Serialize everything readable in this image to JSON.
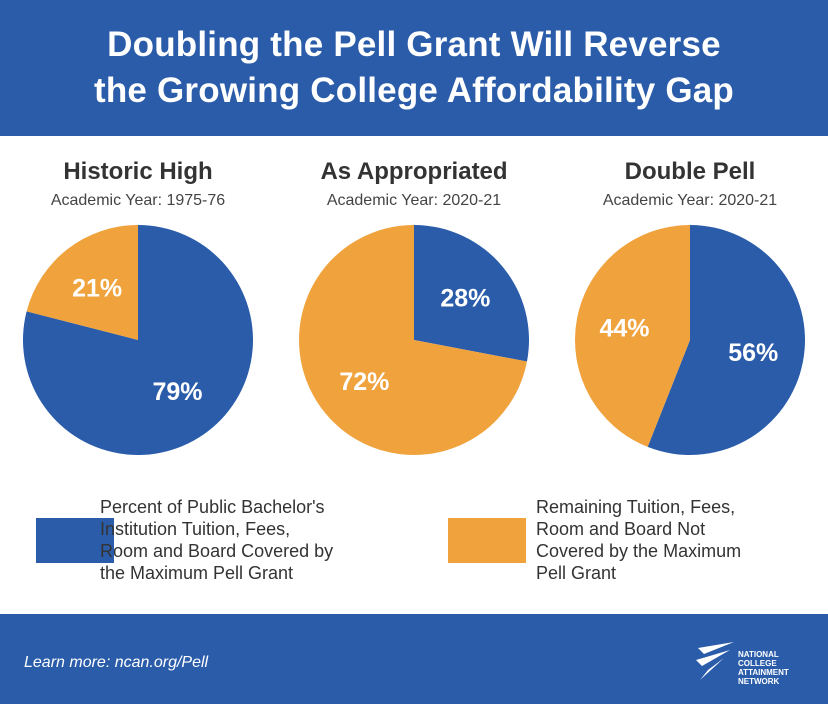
{
  "title_lines": [
    "Doubling the Pell Grant Will Reverse",
    "the Growing College Affordability Gap"
  ],
  "colors": {
    "header_bg": "#2a5caa",
    "covered": "#2a5caa",
    "remaining": "#f0a23c"
  },
  "chart_data": [
    {
      "type": "pie",
      "title": "Historic High",
      "subtitle": "Academic Year: 1975-76",
      "slices": [
        {
          "name": "covered",
          "value": 79,
          "label": "79%"
        },
        {
          "name": "remaining",
          "value": 21,
          "label": "21%"
        }
      ]
    },
    {
      "type": "pie",
      "title": "As Appropriated",
      "subtitle": "Academic Year: 2020-21",
      "slices": [
        {
          "name": "covered",
          "value": 28,
          "label": "28%"
        },
        {
          "name": "remaining",
          "value": 72,
          "label": "72%"
        }
      ]
    },
    {
      "type": "pie",
      "title": "Double Pell",
      "subtitle": "Academic Year: 2020-21",
      "slices": [
        {
          "name": "covered",
          "value": 56,
          "label": "56%"
        },
        {
          "name": "remaining",
          "value": 44,
          "label": "44%"
        }
      ]
    }
  ],
  "legend": {
    "covered_lines": [
      "Percent of Public Bachelor's",
      "Institution Tuition, Fees,",
      "Room and Board Covered by",
      "the Maximum Pell Grant"
    ],
    "remaining_lines": [
      "Remaining Tuition, Fees,",
      "Room and Board Not",
      "Covered by the Maximum",
      "Pell Grant"
    ]
  },
  "footer": {
    "learn_more": "Learn more: ncan.org/Pell",
    "logo_lines": [
      "NATIONAL",
      "COLLEGE",
      "ATTAINMENT",
      "NETWORK"
    ]
  }
}
